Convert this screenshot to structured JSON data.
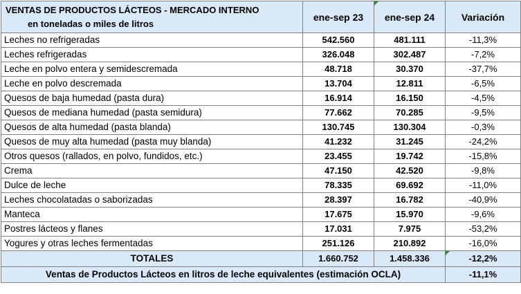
{
  "header": {
    "title_line1": "VENTAS DE PRODUCTOS LÁCTEOS - MERCADO INTERNO",
    "title_line2": "en toneladas o miles de litros",
    "col1": "ene-sep 23",
    "col2": "ene-sep 24",
    "col3": "Variación"
  },
  "rows": [
    {
      "name": "Leches no refrigeradas",
      "v23": "542.560",
      "v24": "481.111",
      "var": "-11,3%"
    },
    {
      "name": "Leches refrigeradas",
      "v23": "326.048",
      "v24": "302.487",
      "var": "-7,2%"
    },
    {
      "name": "Leche en polvo entera y semidescremada",
      "v23": "48.718",
      "v24": "30.370",
      "var": "-37,7%"
    },
    {
      "name": "Leche en polvo descremada",
      "v23": "13.704",
      "v24": "12.811",
      "var": "-6,5%"
    },
    {
      "name": "Quesos de baja humedad (pasta dura)",
      "v23": "16.914",
      "v24": "16.150",
      "var": "-4,5%"
    },
    {
      "name": "Quesos de mediana humedad (pasta semidura)",
      "v23": "77.662",
      "v24": "70.285",
      "var": "-9,5%"
    },
    {
      "name": "Quesos de alta humedad (pasta blanda)",
      "v23": "130.745",
      "v24": "130.304",
      "var": "-0,3%"
    },
    {
      "name": "Quesos de muy alta humedad (pasta muy blanda)",
      "v23": "41.232",
      "v24": "31.245",
      "var": "-24,2%"
    },
    {
      "name": "Otros quesos (rallados, en polvo, fundidos, etc.)",
      "v23": "23.455",
      "v24": "19.742",
      "var": "-15,8%"
    },
    {
      "name": "Crema",
      "v23": "47.150",
      "v24": "42.520",
      "var": "-9,8%"
    },
    {
      "name": "Dulce de leche",
      "v23": "78.335",
      "v24": "69.692",
      "var": "-11,0%"
    },
    {
      "name": "Leches chocolatadas o saborizadas",
      "v23": "28.397",
      "v24": "16.782",
      "var": "-40,9%"
    },
    {
      "name": "Manteca",
      "v23": "17.675",
      "v24": "15.970",
      "var": "-9,6%"
    },
    {
      "name": "Postres lácteos y flanes",
      "v23": "17.031",
      "v24": "7.975",
      "var": "-53,2%"
    },
    {
      "name": "Yogures y otras leches fermentadas",
      "v23": "251.126",
      "v24": "210.892",
      "var": "-16,0%"
    }
  ],
  "totals": {
    "label": "TOTALES",
    "v23": "1.660.752",
    "v24": "1.458.336",
    "var": "-12,2%"
  },
  "equivalent": {
    "label": "Ventas de Productos Lácteos en litros de leche equivalentes (estimación OCLA)",
    "var": "-11,1%"
  },
  "colors": {
    "header_bg": "#dae9f8",
    "corner_mark": "#2e8b3e",
    "border": "#7f7f7f"
  }
}
